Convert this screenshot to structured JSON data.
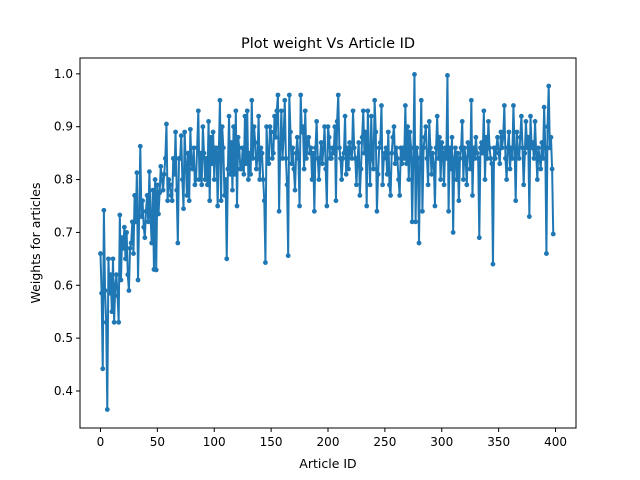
{
  "chart_data": {
    "type": "line",
    "title": "Plot weight Vs Article ID",
    "xlabel": "Article ID",
    "ylabel": "Weights for articles",
    "xlim": [
      -18,
      418
    ],
    "ylim": [
      0.33,
      1.03
    ],
    "xticks": [
      0,
      50,
      100,
      150,
      200,
      250,
      300,
      350,
      400
    ],
    "yticks": [
      0.4,
      0.5,
      0.6,
      0.7,
      0.8,
      0.9,
      1.0
    ],
    "xtick_labels": [
      "0",
      "50",
      "100",
      "150",
      "200",
      "250",
      "300",
      "350",
      "400"
    ],
    "ytick_labels": [
      "0.4",
      "0.5",
      "0.6",
      "0.7",
      "0.8",
      "0.9",
      "1.0"
    ],
    "grid": false,
    "markers": true,
    "colors": {
      "series": "#1f77b4",
      "axes": "#000000",
      "background": "#ffffff"
    },
    "series": [
      {
        "x": [
          0,
          1,
          2,
          3,
          4,
          5,
          6,
          7,
          8,
          9,
          10,
          11,
          12,
          13,
          14,
          15,
          16,
          17,
          18,
          19,
          20,
          21,
          22,
          23,
          24,
          25,
          26,
          27,
          28,
          29,
          30,
          31,
          32,
          33,
          34,
          35,
          36,
          37,
          38,
          39,
          40,
          41,
          42,
          43,
          44,
          45,
          46,
          47,
          48,
          49,
          50,
          51,
          52,
          53,
          54,
          55,
          56,
          57,
          58,
          59,
          60,
          61,
          62,
          63,
          64,
          65,
          66,
          67,
          68,
          69,
          70,
          71,
          72,
          73,
          74,
          75,
          76,
          77,
          78,
          79,
          80,
          81,
          82,
          83,
          84,
          85,
          86,
          87,
          88,
          89,
          90,
          91,
          92,
          93,
          94,
          95,
          96,
          97,
          98,
          99,
          100,
          101,
          102,
          103,
          104,
          105,
          106,
          107,
          108,
          109,
          110,
          111,
          112,
          113,
          114,
          115,
          116,
          117,
          118,
          119,
          120,
          121,
          122,
          123,
          124,
          125,
          126,
          127,
          128,
          129,
          130,
          131,
          132,
          133,
          134,
          135,
          136,
          137,
          138,
          139,
          140,
          141,
          142,
          143,
          144,
          145,
          146,
          147,
          148,
          149,
          150,
          151,
          152,
          153,
          154,
          155,
          156,
          157,
          158,
          159,
          160,
          161,
          162,
          163,
          164,
          165,
          166,
          167,
          168,
          169,
          170,
          171,
          172,
          173,
          174,
          175,
          176,
          177,
          178,
          179,
          180,
          181,
          182,
          183,
          184,
          185,
          186,
          187,
          188,
          189,
          190,
          191,
          192,
          193,
          194,
          195,
          196,
          197,
          198,
          199,
          200,
          201,
          202,
          203,
          204,
          205,
          206,
          207,
          208,
          209,
          210,
          211,
          212,
          213,
          214,
          215,
          216,
          217,
          218,
          219,
          220,
          221,
          222,
          223,
          224,
          225,
          226,
          227,
          228,
          229,
          230,
          231,
          232,
          233,
          234,
          235,
          236,
          237,
          238,
          239,
          240,
          241,
          242,
          243,
          244,
          245,
          246,
          247,
          248,
          249,
          250,
          251,
          252,
          253,
          254,
          255,
          256,
          257,
          258,
          259,
          260,
          261,
          262,
          263,
          264,
          265,
          266,
          267,
          268,
          269,
          270,
          271,
          272,
          273,
          274,
          275,
          276,
          277,
          278,
          279,
          280,
          281,
          282,
          283,
          284,
          285,
          286,
          287,
          288,
          289,
          290,
          291,
          292,
          293,
          294,
          295,
          296,
          297,
          298,
          299,
          300,
          301,
          302,
          303,
          304,
          305,
          306,
          307,
          308,
          309,
          310,
          311,
          312,
          313,
          314,
          315,
          316,
          317,
          318,
          319,
          320,
          321,
          322,
          323,
          324,
          325,
          326,
          327,
          328,
          329,
          330,
          331,
          332,
          333,
          334,
          335,
          336,
          337,
          338,
          339,
          340,
          341,
          342,
          343,
          344,
          345,
          346,
          347,
          348,
          349,
          350,
          351,
          352,
          353,
          354,
          355,
          356,
          357,
          358,
          359,
          360,
          361,
          362,
          363,
          364,
          365,
          366,
          367,
          368,
          369,
          370,
          371,
          372,
          373,
          374,
          375,
          376,
          377,
          378,
          379,
          380,
          381,
          382,
          383,
          384,
          385,
          386,
          387,
          388,
          389,
          390,
          391,
          392,
          393,
          394,
          395,
          396,
          397,
          398
        ],
        "y": [
          0.66,
          0.585,
          0.442,
          0.742,
          0.59,
          0.53,
          0.365,
          0.65,
          0.585,
          0.62,
          0.55,
          0.65,
          0.53,
          0.6,
          0.62,
          0.58,
          0.53,
          0.733,
          0.61,
          0.69,
          0.67,
          0.71,
          0.65,
          0.7,
          0.62,
          0.59,
          0.67,
          0.68,
          0.72,
          0.66,
          0.77,
          0.72,
          0.813,
          0.61,
          0.73,
          0.863,
          0.73,
          0.76,
          0.71,
          0.69,
          0.74,
          0.77,
          0.72,
          0.815,
          0.73,
          0.68,
          0.78,
          0.63,
          0.8,
          0.629,
          0.79,
          0.735,
          0.775,
          0.825,
          0.8,
          0.78,
          0.81,
          0.84,
          0.905,
          0.76,
          0.8,
          0.79,
          0.77,
          0.76,
          0.84,
          0.81,
          0.89,
          0.78,
          0.68,
          0.84,
          0.84,
          0.883,
          0.8,
          0.745,
          0.89,
          0.83,
          0.77,
          0.85,
          0.76,
          0.895,
          0.83,
          0.82,
          0.86,
          0.79,
          0.8,
          0.86,
          0.93,
          0.8,
          0.85,
          0.79,
          0.9,
          0.85,
          0.8,
          0.84,
          0.79,
          0.91,
          0.76,
          0.88,
          0.83,
          0.89,
          0.8,
          0.86,
          0.86,
          0.75,
          0.85,
          0.95,
          0.76,
          0.9,
          0.86,
          0.77,
          0.8,
          0.65,
          0.82,
          0.92,
          0.81,
          0.87,
          0.78,
          0.9,
          0.81,
          0.93,
          0.75,
          0.88,
          0.86,
          0.82,
          0.82,
          0.86,
          0.81,
          0.92,
          0.83,
          0.93,
          0.8,
          0.85,
          0.81,
          0.95,
          0.84,
          0.9,
          0.87,
          0.82,
          0.84,
          0.92,
          0.8,
          0.86,
          0.85,
          0.8,
          0.76,
          0.643,
          0.9,
          0.84,
          0.83,
          0.9,
          0.89,
          0.84,
          0.85,
          0.92,
          0.88,
          0.93,
          0.96,
          0.74,
          0.86,
          0.93,
          0.84,
          0.88,
          0.95,
          0.84,
          0.79,
          0.656,
          0.96,
          0.89,
          0.83,
          0.86,
          0.82,
          0.78,
          0.85,
          0.88,
          0.84,
          0.75,
          0.96,
          0.89,
          0.9,
          0.82,
          0.93,
          0.84,
          0.87,
          0.88,
          0.85,
          0.86,
          0.8,
          0.85,
          0.74,
          0.86,
          0.91,
          0.84,
          0.8,
          0.84,
          0.87,
          0.83,
          0.86,
          0.9,
          0.82,
          0.75,
          0.9,
          0.88,
          0.84,
          0.84,
          0.86,
          0.85,
          0.9,
          0.76,
          0.91,
          0.96,
          0.86,
          0.84,
          0.8,
          0.84,
          0.85,
          0.92,
          0.81,
          0.86,
          0.82,
          0.87,
          0.85,
          0.84,
          0.93,
          0.86,
          0.84,
          0.79,
          0.84,
          0.87,
          0.77,
          0.82,
          0.88,
          0.93,
          0.85,
          0.89,
          0.75,
          0.93,
          0.85,
          0.79,
          0.92,
          0.84,
          0.82,
          0.95,
          0.89,
          0.74,
          0.81,
          0.86,
          0.87,
          0.94,
          0.79,
          0.84,
          0.85,
          0.86,
          0.81,
          0.89,
          0.79,
          0.77,
          0.85,
          0.88,
          0.9,
          0.83,
          0.86,
          0.84,
          0.8,
          0.77,
          0.86,
          0.83,
          0.86,
          0.84,
          0.94,
          0.83,
          0.9,
          0.8,
          0.89,
          0.86,
          0.72,
          0.84,
          0.999,
          0.72,
          0.86,
          0.84,
          0.68,
          0.84,
          0.95,
          0.74,
          0.86,
          0.88,
          0.9,
          0.84,
          0.79,
          0.91,
          0.86,
          0.81,
          0.85,
          0.83,
          0.75,
          0.86,
          0.92,
          0.84,
          0.88,
          0.8,
          0.87,
          0.85,
          0.79,
          0.86,
          0.84,
          0.997,
          0.74,
          0.86,
          0.82,
          0.88,
          0.7,
          0.84,
          0.86,
          0.8,
          0.85,
          0.76,
          0.84,
          0.86,
          0.91,
          0.8,
          0.86,
          0.84,
          0.79,
          0.87,
          0.86,
          0.82,
          0.95,
          0.77,
          0.86,
          0.84,
          0.88,
          0.85,
          0.84,
          0.69,
          0.86,
          0.87,
          0.85,
          0.93,
          0.8,
          0.88,
          0.84,
          0.91,
          0.86,
          0.84,
          0.83,
          0.64,
          0.86,
          0.84,
          0.86,
          0.88,
          0.85,
          0.83,
          0.89,
          0.86,
          0.88,
          0.94,
          0.84,
          0.8,
          0.86,
          0.89,
          0.82,
          0.86,
          0.84,
          0.94,
          0.86,
          0.76,
          0.89,
          0.85,
          0.84,
          0.88,
          0.92,
          0.86,
          0.79,
          0.85,
          0.91,
          0.86,
          0.88,
          0.73,
          0.92,
          0.86,
          0.87,
          0.84,
          0.91,
          0.85,
          0.8,
          0.86,
          0.84,
          0.82,
          0.87,
          0.84,
          0.937,
          0.86,
          0.66,
          0.9,
          0.977,
          0.86,
          0.88,
          0.82,
          0.697
        ]
      }
    ]
  }
}
